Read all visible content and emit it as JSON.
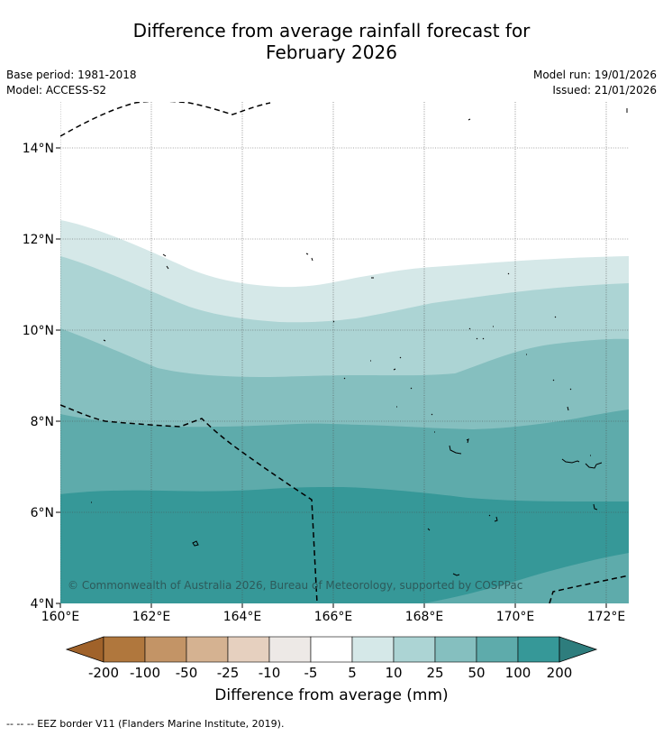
{
  "title": {
    "line1": "Difference from average rainfall forecast for",
    "line2": "February 2026"
  },
  "meta": {
    "base_period": "Base period: 1981-2018",
    "model": "Model: ACCESS-S2",
    "model_run": "Model run: 19/01/2026",
    "issued": "Issued: 21/01/2026"
  },
  "map": {
    "lat_labels": [
      "14°N",
      "12°N",
      "10°N",
      "8°N",
      "6°N",
      "4°N"
    ],
    "lon_labels": [
      "160°E",
      "162°E",
      "164°E",
      "166°E",
      "168°E",
      "170°E",
      "172°E"
    ],
    "copyright": "© Commonwealth of Australia 2026, Bureau of Meteorology, supported by COSPPac"
  },
  "colorbar": {
    "ticks": [
      "-200",
      "-100",
      "-50",
      "-25",
      "-10",
      "-5",
      "5",
      "10",
      "25",
      "50",
      "100",
      "200"
    ],
    "colors": {
      "lt_m200": "#a0622a",
      "m200_m100": "#b0773d",
      "m100_m50": "#c39466",
      "m50_m25": "#d5b291",
      "m25_m10": "#e6d0bf",
      "m10_m5": "#ede9e6",
      "m5_5": "#ffffff",
      "p5_10": "#d5e8e8",
      "p10_25": "#acd4d4",
      "p25_50": "#85bfbf",
      "p50_100": "#5eabab",
      "p100_200": "#369898",
      "gt_200": "#2e7d7d"
    },
    "label": "Difference from average (mm)"
  },
  "footnote": "-- -- -- EEZ border V11 (Flanders Marine Institute, 2019)."
}
